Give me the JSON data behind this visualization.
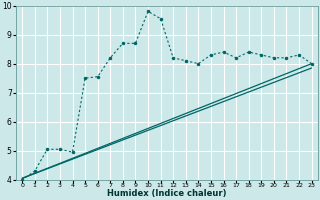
{
  "xlabel": "Humidex (Indice chaleur)",
  "bg_color": "#cce8e8",
  "grid_color": "#ffffff",
  "line_color": "#006666",
  "xlim": [
    -0.5,
    23.5
  ],
  "ylim": [
    4,
    10
  ],
  "xticks": [
    0,
    1,
    2,
    3,
    4,
    5,
    6,
    7,
    8,
    9,
    10,
    11,
    12,
    13,
    14,
    15,
    16,
    17,
    18,
    19,
    20,
    21,
    22,
    23
  ],
  "yticks": [
    4,
    5,
    6,
    7,
    8,
    9,
    10
  ],
  "curve1_x": [
    0,
    1,
    2,
    3,
    4,
    5,
    6,
    7,
    8,
    9,
    10,
    11,
    12,
    13,
    14,
    15,
    16,
    17,
    18,
    19,
    20,
    21,
    22,
    23
  ],
  "curve1_y": [
    4.0,
    4.3,
    5.05,
    5.05,
    4.95,
    7.5,
    7.55,
    8.2,
    8.7,
    8.7,
    9.8,
    9.55,
    8.2,
    8.1,
    8.0,
    8.3,
    8.4,
    8.2,
    8.4,
    8.3,
    8.2,
    8.2,
    8.3,
    8.0
  ],
  "line2_x": [
    0,
    23
  ],
  "line2_y": [
    4.05,
    8.0
  ],
  "line3_x": [
    0,
    23
  ],
  "line3_y": [
    4.05,
    7.85
  ],
  "figsize": [
    3.2,
    2.0
  ],
  "dpi": 100
}
